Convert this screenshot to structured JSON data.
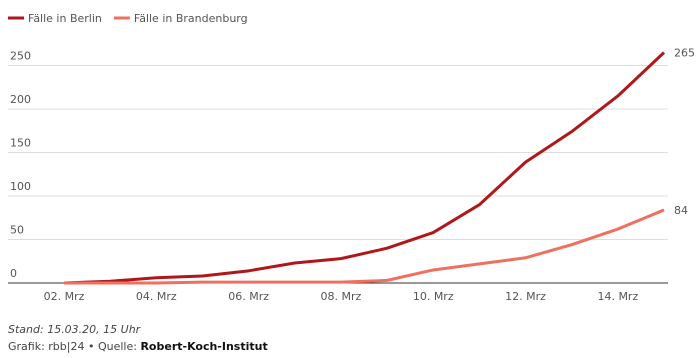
{
  "chart_data": {
    "type": "line",
    "categories": [
      "02. Mrz",
      null,
      "04. Mrz",
      null,
      "06. Mrz",
      null,
      "08. Mrz",
      null,
      "10. Mrz",
      null,
      "12. Mrz",
      null,
      "14. Mrz",
      null
    ],
    "series": [
      {
        "name": "Fälle in Berlin",
        "color": "#b0171b",
        "values": [
          0,
          2,
          6,
          8,
          14,
          23,
          28,
          40,
          58,
          90,
          139,
          174,
          215,
          265
        ]
      },
      {
        "name": "Fälle in Brandenburg",
        "color": "#f07060",
        "values": [
          0,
          0,
          0,
          1,
          1,
          1,
          1,
          3,
          15,
          22,
          29,
          44,
          62,
          84
        ]
      }
    ],
    "ylim": [
      0,
      265
    ],
    "yticks": [
      0,
      50,
      100,
      150,
      200,
      250
    ],
    "grid": true,
    "legend": "top-left",
    "note": "Stand: 15.03.20, 15 Uhr",
    "credit": "Grafik: rbb|24 • Quelle:",
    "source": "Robert-Koch-Institut"
  }
}
